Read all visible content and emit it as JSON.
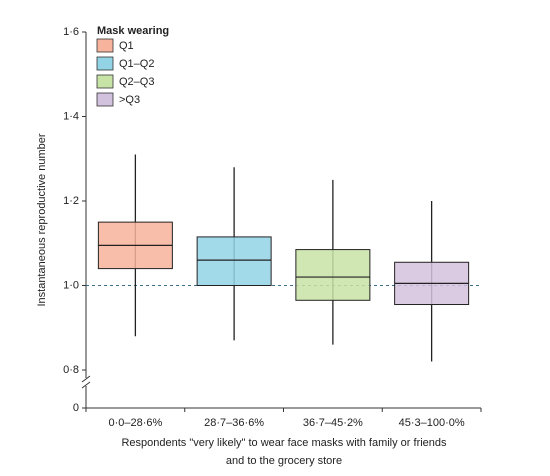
{
  "chart_data": {
    "type": "box",
    "y_label": "Instantaneous reproductive number",
    "x_label": [
      "Respondents \"very likely\" to wear face masks with family or friends",
      "and to the grocery store"
    ],
    "legend_title": "Mask wearing",
    "categories": [
      "0·0–28·6%",
      "28·7–36·6%",
      "36·7–45·2%",
      "45·3–100·0%"
    ],
    "series": [
      {
        "name": "Q1",
        "color": "#f7b39b",
        "whisker_low": 0.88,
        "q1": 1.04,
        "median": 1.095,
        "q3": 1.15,
        "whisker_high": 1.31
      },
      {
        "name": "Q1–Q2",
        "color": "#93d3e6",
        "whisker_low": 0.87,
        "q1": 1.0,
        "median": 1.06,
        "q3": 1.115,
        "whisker_high": 1.28
      },
      {
        "name": "Q2–Q3",
        "color": "#c8e3a6",
        "whisker_low": 0.86,
        "q1": 0.965,
        "median": 1.02,
        "q3": 1.085,
        "whisker_high": 1.25
      },
      {
        "name": ">Q3",
        "color": "#d3c2de",
        "whisker_low": 0.82,
        "q1": 0.955,
        "median": 1.005,
        "q3": 1.055,
        "whisker_high": 1.2
      }
    ],
    "ylim": [
      0.8,
      1.6
    ],
    "yticks": [
      {
        "value": 0,
        "label": "0"
      },
      {
        "value": 0.8,
        "label": "0·8"
      },
      {
        "value": 1.0,
        "label": "1·0"
      },
      {
        "value": 1.2,
        "label": "1·2"
      },
      {
        "value": 1.4,
        "label": "1·4"
      },
      {
        "value": 1.6,
        "label": "1·6"
      }
    ],
    "axis_break": true,
    "reference_line": 1.0
  }
}
